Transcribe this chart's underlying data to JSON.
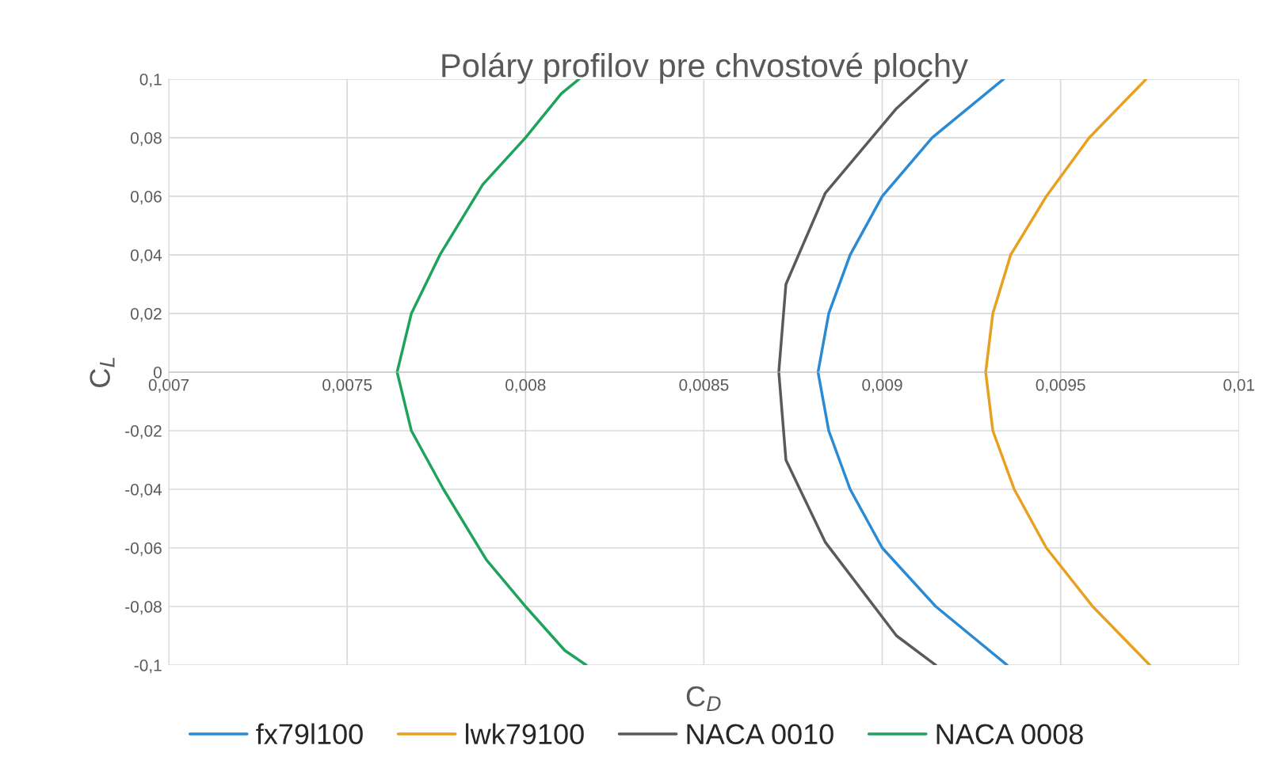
{
  "chart_data": {
    "type": "line",
    "title": "Poláry profilov pre chvostové plochy",
    "xlabel": "C$_{D}$",
    "ylabel": "C$_{L}$",
    "xlim": [
      0.007,
      0.01
    ],
    "ylim": [
      -0.1,
      0.1
    ],
    "xticks": [
      {
        "value": 0.007,
        "label": "0,007"
      },
      {
        "value": 0.0075,
        "label": "0,0075"
      },
      {
        "value": 0.008,
        "label": "0,008"
      },
      {
        "value": 0.0085,
        "label": "0,0085"
      },
      {
        "value": 0.009,
        "label": "0,009"
      },
      {
        "value": 0.0095,
        "label": "0,0095"
      },
      {
        "value": 0.01,
        "label": "0,01"
      }
    ],
    "yticks": [
      {
        "value": -0.1,
        "label": "-0,1"
      },
      {
        "value": -0.08,
        "label": "-0,08"
      },
      {
        "value": -0.06,
        "label": "-0,06"
      },
      {
        "value": -0.04,
        "label": "-0,04"
      },
      {
        "value": -0.02,
        "label": "-0,02"
      },
      0,
      {
        "value": 0.02,
        "label": "0,02"
      },
      {
        "value": 0.04,
        "label": "0,04"
      },
      {
        "value": 0.06,
        "label": "0,06"
      },
      {
        "value": 0.08,
        "label": "0,08"
      },
      {
        "value": 0.1,
        "label": "0,1"
      }
    ],
    "grid": true,
    "legend": "bottom",
    "marker": "none",
    "line_style": "solid",
    "series": [
      {
        "name": "fx79l100",
        "color": "#2a8ad4",
        "x": [
          0.00935,
          0.00915,
          0.009,
          0.00891,
          0.00885,
          0.00882,
          0.00885,
          0.00891,
          0.009,
          0.00914,
          0.00934
        ],
        "values": [
          -0.1,
          -0.08,
          -0.06,
          -0.04,
          -0.02,
          0,
          0.02,
          0.04,
          0.06,
          0.08,
          0.1
        ]
      },
      {
        "name": "lwk79100",
        "color": "#e8a020",
        "x": [
          0.00975,
          0.00959,
          0.00946,
          0.00937,
          0.00931,
          0.00929,
          0.00931,
          0.00936,
          0.00946,
          0.00958,
          0.00974
        ],
        "values": [
          -0.1,
          -0.08,
          -0.06,
          -0.04,
          -0.02,
          0,
          0.02,
          0.04,
          0.06,
          0.08,
          0.1
        ]
      },
      {
        "name": "NACA 0010",
        "color": "#5a5a5a",
        "x": [
          0.00915,
          0.00904,
          0.00884,
          0.00873,
          0.00871,
          0.00873,
          0.00884,
          0.00904,
          0.00913
        ],
        "values": [
          -0.1,
          -0.09,
          -0.058,
          -0.03,
          0,
          0.03,
          0.061,
          0.09,
          0.1
        ]
      },
      {
        "name": "NACA 0008",
        "color": "#1fa35c",
        "x": [
          0.00817,
          0.00811,
          0.008,
          0.00789,
          0.00777,
          0.00768,
          0.00764,
          0.00768,
          0.00776,
          0.00788,
          0.008,
          0.0081,
          0.00815
        ],
        "values": [
          -0.1,
          -0.095,
          -0.08,
          -0.064,
          -0.04,
          -0.02,
          0,
          0.02,
          0.04,
          0.064,
          0.08,
          0.095,
          0.1
        ]
      }
    ]
  }
}
